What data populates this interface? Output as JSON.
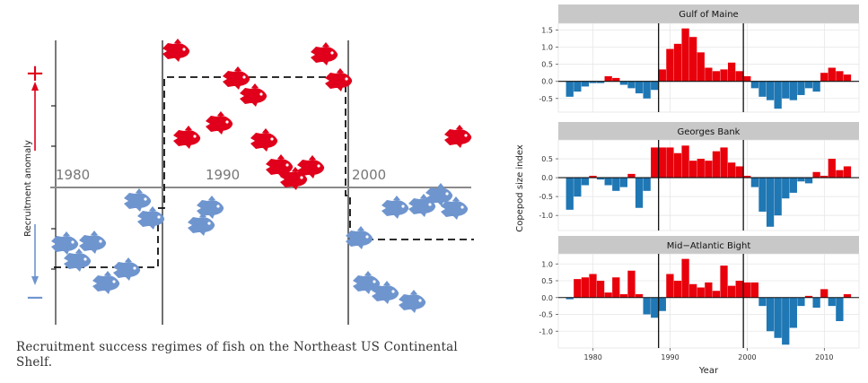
{
  "left": {
    "ylabel": "Recruitment anomaly",
    "plus": "+",
    "minus": "−",
    "decades": [
      "1980",
      "1990",
      "2000"
    ],
    "caption": "Recruitment success regimes of fish on the Northeast US Continental Shelf.",
    "colors": {
      "high": "#e0001b",
      "low": "#6f95cf",
      "arrow_top": "#e0001b",
      "arrow_bottom": "#6f95cf"
    },
    "fish_icon": "fish-icon",
    "regime_line": {
      "type": "step",
      "levels": [
        "low",
        "high",
        "low"
      ],
      "breaks_at_decades": [
        "1980s boundary",
        "1990s boundary"
      ]
    }
  },
  "right": {
    "ylabel": "Copepod size index",
    "xlabel": "Year",
    "xticks": [
      "1980",
      "1990",
      "2000",
      "2010"
    ],
    "colors": {
      "positive": "#e8000b",
      "negative": "#1f77b4",
      "strip": "#c8c8c8"
    }
  },
  "chart_data": [
    {
      "type": "bar",
      "title": "Gulf of Maine",
      "x": [
        1977,
        1978,
        1979,
        1980,
        1981,
        1982,
        1983,
        1984,
        1985,
        1986,
        1987,
        1988,
        1989,
        1990,
        1991,
        1992,
        1993,
        1994,
        1995,
        1996,
        1997,
        1998,
        1999,
        2000,
        2001,
        2002,
        2003,
        2004,
        2005,
        2006,
        2007,
        2008,
        2009,
        2010,
        2011,
        2012,
        2013
      ],
      "values": [
        -0.45,
        -0.3,
        -0.15,
        -0.05,
        -0.05,
        0.15,
        0.1,
        -0.1,
        -0.2,
        -0.35,
        -0.5,
        -0.25,
        0.35,
        0.95,
        1.1,
        1.55,
        1.3,
        0.85,
        0.4,
        0.3,
        0.35,
        0.55,
        0.3,
        0.15,
        -0.2,
        -0.45,
        -0.55,
        -0.8,
        -0.5,
        -0.55,
        -0.4,
        -0.2,
        -0.3,
        0.25,
        0.4,
        0.3,
        0.2
      ],
      "yticks": [
        "1.5",
        "1.0",
        "0.5",
        "0.0",
        "-0.5"
      ],
      "ylim": [
        -0.9,
        1.7
      ]
    },
    {
      "type": "bar",
      "title": "Georges Bank",
      "x": [
        1977,
        1978,
        1979,
        1980,
        1981,
        1982,
        1983,
        1984,
        1985,
        1986,
        1987,
        1988,
        1989,
        1990,
        1991,
        1992,
        1993,
        1994,
        1995,
        1996,
        1997,
        1998,
        1999,
        2000,
        2001,
        2002,
        2003,
        2004,
        2005,
        2006,
        2007,
        2008,
        2009,
        2010,
        2011,
        2012,
        2013
      ],
      "values": [
        -0.85,
        -0.5,
        -0.2,
        0.05,
        -0.05,
        -0.2,
        -0.35,
        -0.25,
        0.1,
        -0.8,
        -0.35,
        0.8,
        0.8,
        0.8,
        0.65,
        0.85,
        0.45,
        0.5,
        0.45,
        0.7,
        0.8,
        0.4,
        0.3,
        0.05,
        -0.25,
        -0.9,
        -1.3,
        -1.0,
        -0.55,
        -0.4,
        -0.1,
        -0.15,
        0.15,
        0.05,
        0.5,
        0.2,
        0.3
      ],
      "yticks": [
        "0.5",
        "0.0",
        "-0.5",
        "-1.0"
      ],
      "ylim": [
        -1.4,
        1.0
      ]
    },
    {
      "type": "bar",
      "title": "Mid−Atlantic Bight",
      "x": [
        1977,
        1978,
        1979,
        1980,
        1981,
        1982,
        1983,
        1984,
        1985,
        1986,
        1987,
        1988,
        1989,
        1990,
        1991,
        1992,
        1993,
        1994,
        1995,
        1996,
        1997,
        1998,
        1999,
        2000,
        2001,
        2002,
        2003,
        2004,
        2005,
        2006,
        2007,
        2008,
        2009,
        2010,
        2011,
        2012,
        2013
      ],
      "values": [
        -0.05,
        0.55,
        0.6,
        0.7,
        0.5,
        0.15,
        0.6,
        0.1,
        0.8,
        0.1,
        -0.5,
        -0.6,
        -0.4,
        0.7,
        0.5,
        1.15,
        0.4,
        0.3,
        0.45,
        0.2,
        0.95,
        0.35,
        0.5,
        0.45,
        0.45,
        -0.25,
        -1.0,
        -1.2,
        -1.4,
        -0.9,
        -0.25,
        0.05,
        -0.3,
        0.25,
        -0.25,
        -0.7,
        0.1
      ],
      "yticks": [
        "1.0",
        "0.5",
        "0.0",
        "-0.5",
        "-1.0"
      ],
      "ylim": [
        -1.5,
        1.3
      ]
    }
  ]
}
